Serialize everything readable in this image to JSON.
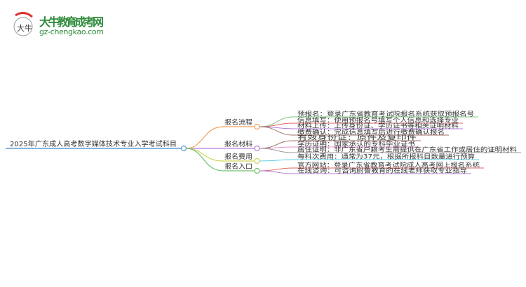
{
  "logo": {
    "name": "大牛教育成考网",
    "url": "gz-chengkao.com",
    "mark": "大牛"
  },
  "root": {
    "label": "2025年广东成人高考数字媒体技术专业入学考试科目",
    "color": "#5b9bd5"
  },
  "branches": [
    {
      "label": "报名流程",
      "color": "#f5a05a",
      "leaves": [
        {
          "label": "预报名：登录广东省教育考试院报名系统获取预报名号",
          "color": "#7cc47a"
        },
        {
          "label": "信息填写：使用预报名号填写个人信息和选择专业",
          "color": "#e06666"
        },
        {
          "label": "材料上传：上传身份证、学历证书等相关证明材料",
          "color": "#b07cd8"
        },
        {
          "label": "缴费确认：完成信息填写后进行缴费确认报名",
          "color": "#a0706a"
        }
      ]
    },
    {
      "label": "报名材料",
      "color": "#b07cd8",
      "leaves": [
        {
          "label": "有效身份证：原件及复印件",
          "color": "#a0706a"
        },
        {
          "label": "学历证明：国家承认的专科毕业证书",
          "color": "#e58fd0"
        },
        {
          "label": "居住证明：非广东省户籍考生需提供在广东省工作或居住的证明材料",
          "color": "#999999"
        }
      ]
    },
    {
      "label": "报名费用",
      "color": "#d4d45a",
      "leaves": [
        {
          "label": "每科次费用：通常为37元，根据所报科目数量进行预算",
          "color": "#5bd0e0"
        }
      ]
    },
    {
      "label": "报名入口",
      "color": "#6cc06c",
      "leaves": [
        {
          "label": "官方网站：登录广东省教育考试院成人高考网上报名系统",
          "color": "#e06666"
        },
        {
          "label": "在线咨询：可咨询尉鲁教育的在线老师获取专业指导",
          "color": "#b07cd8"
        }
      ]
    }
  ]
}
